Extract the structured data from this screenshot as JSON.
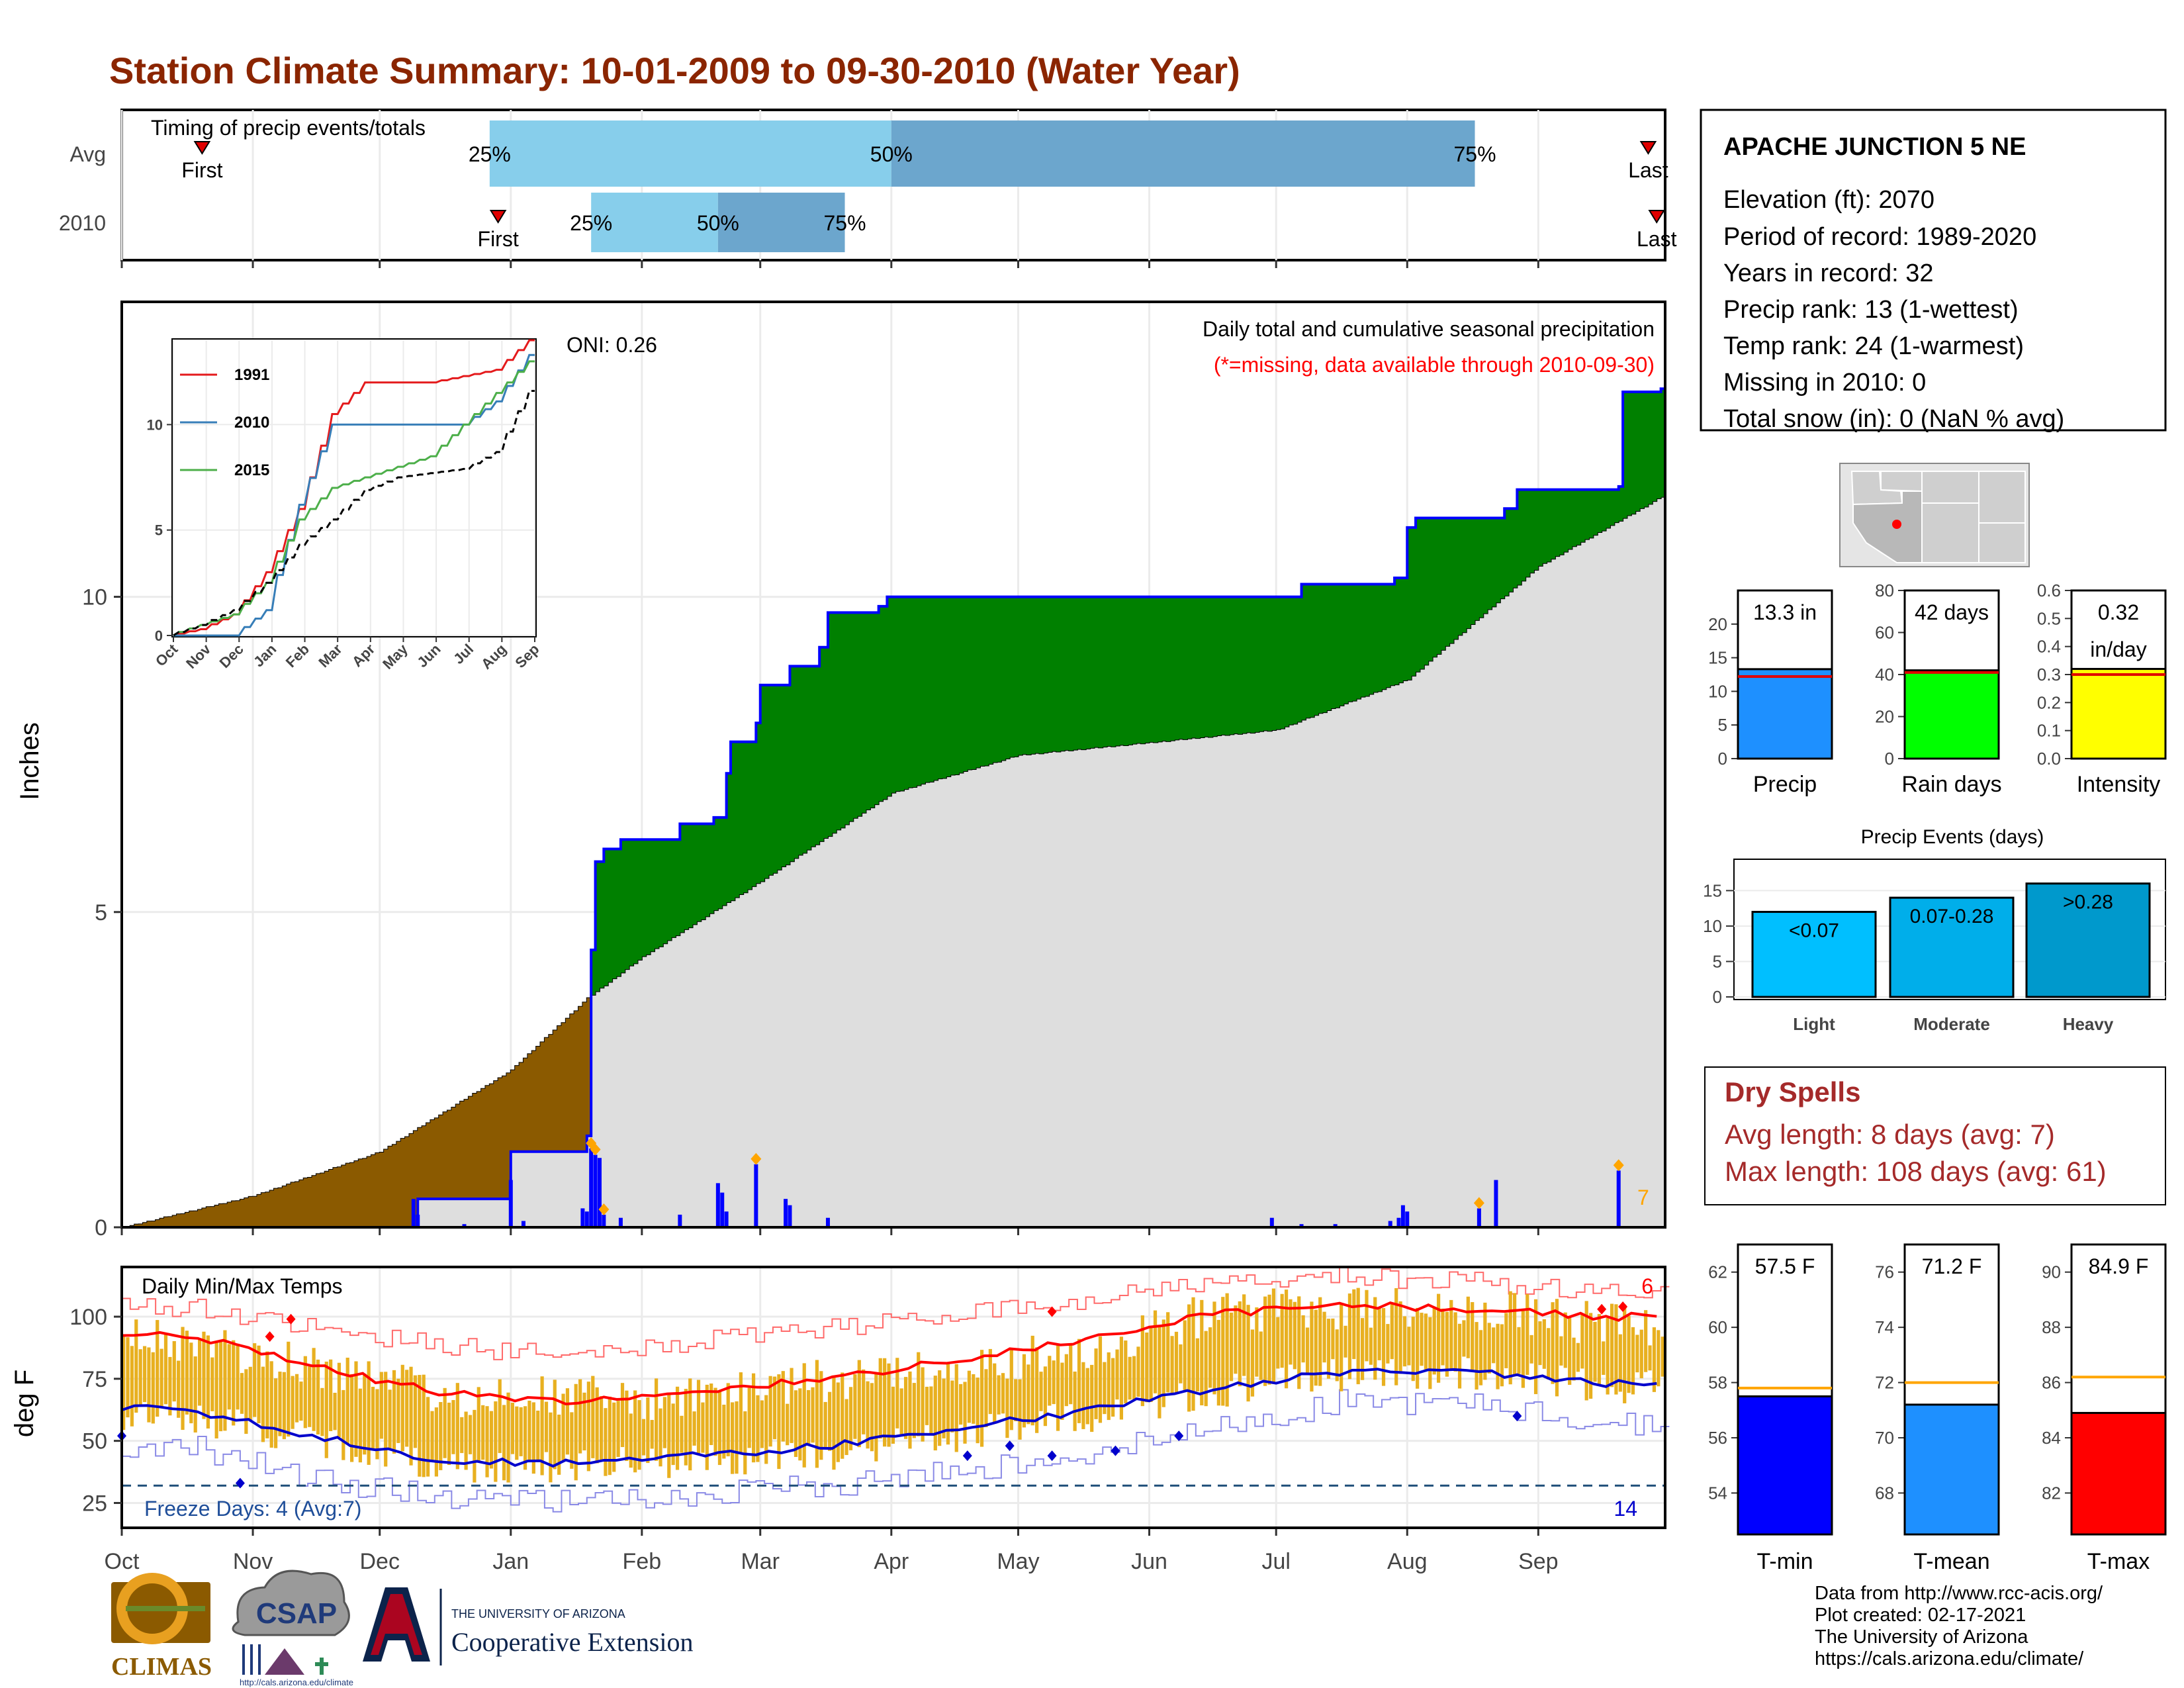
{
  "title": "Station Climate Summary: 10-01-2009 to 09-30-2010 (Water Year)",
  "timing_panel": {
    "title": "Timing of precip events/totals",
    "rows": [
      {
        "label": "Avg",
        "first_label": "First",
        "last_label": "Last",
        "first_date": "2009-10-20",
        "last_date": "2010-09-27",
        "q25": "25%",
        "q50": "50%",
        "q75": "75%",
        "q25_date": "2009-12-27",
        "q50_date": "2010-04-01",
        "q75_date": "2010-08-17"
      },
      {
        "label": "2010",
        "first_label": "First",
        "last_label": "Last",
        "first_date": "2009-12-29",
        "last_date": "2010-09-29",
        "q25": "25%",
        "q50": "50%",
        "q75": "75%",
        "q25_date": "2010-01-20",
        "q50_date": "2010-02-19",
        "q75_date": "2010-03-21"
      }
    ]
  },
  "precip_panel": {
    "ylabel": "Inches",
    "title": "Daily total and cumulative seasonal precipitation",
    "subtitle": "(*=missing, data available through 2010-09-30)",
    "oni": "ONI: 0.26",
    "count_label": "7",
    "colors": {
      "above_avg": "#008000",
      "below_avg": "#8B5A00",
      "avg_fill": "#DEDEDE",
      "bars": "#0000FF",
      "markers": "#FFA500"
    }
  },
  "inset": {
    "legend": [
      "1991",
      "2010",
      "2015"
    ],
    "colors": [
      "#E41A1C",
      "#377EB8",
      "#4DAF4A"
    ],
    "ylabels": [
      "0",
      "5",
      "10"
    ],
    "xlabels": [
      "Oct",
      "Nov",
      "Dec",
      "Jan",
      "Feb",
      "Mar",
      "Apr",
      "May",
      "Jun",
      "Jul",
      "Aug",
      "Sep"
    ]
  },
  "temp_panel": {
    "title": "Daily Min/Max Temps",
    "ylabel": "deg F",
    "yticks": [
      "25",
      "50",
      "75",
      "100"
    ],
    "freeze_label": "Freeze Days: 4 (Avg:7)",
    "high_count": "6",
    "low_count": "14",
    "colors": {
      "bars": "#E8B020",
      "max_line": "#FF0000",
      "min_line": "#0000CC"
    }
  },
  "months": [
    "Oct",
    "Nov",
    "Dec",
    "Jan",
    "Feb",
    "Mar",
    "Apr",
    "May",
    "Jun",
    "Jul",
    "Aug",
    "Sep"
  ],
  "station": {
    "name": "APACHE JUNCTION 5 NE",
    "lines": [
      "Elevation (ft): 2070",
      "Period of record: 1989-2020",
      "Years in record: 32",
      "Precip rank: 13 (1-wettest)",
      "Temp rank: 24 (1-warmest)",
      "Missing in 2010: 0",
      "Total snow (in): 0 (NaN % avg)"
    ]
  },
  "summary_bars": [
    {
      "name": "Precip",
      "value": 13.3,
      "avg": 12.2,
      "label": "13.3 in",
      "color": "#1E90FF",
      "yticks": [
        "0",
        "5",
        "10",
        "15",
        "20"
      ],
      "ymax": 25
    },
    {
      "name": "Rain days",
      "value": 42,
      "avg": 41,
      "label": "42 days",
      "color": "#00FF00",
      "yticks": [
        "0",
        "20",
        "40",
        "60",
        "80"
      ],
      "ymax": 80
    },
    {
      "name": "Intensity",
      "value": 0.32,
      "avg": 0.3,
      "label": "0.32",
      "label2": "in/day",
      "color": "#FFFF00",
      "yticks": [
        "0.0",
        "0.1",
        "0.2",
        "0.3",
        "0.4",
        "0.5",
        "0.6"
      ],
      "ymax": 0.6
    }
  ],
  "precip_events": {
    "title": "Precip Events (days)",
    "yticks": [
      "0",
      "5",
      "10",
      "15"
    ],
    "bars": [
      {
        "name": "Light",
        "range": "<0.07",
        "value": 12,
        "color": "#00BFFF"
      },
      {
        "name": "Moderate",
        "range": "0.07-0.28",
        "value": 14,
        "color": "#00AEEA"
      },
      {
        "name": "Heavy",
        "range": ">0.28",
        "value": 16,
        "color": "#0099CC"
      }
    ]
  },
  "dry_spells": {
    "title": "Dry Spells",
    "avg_length": "Avg length: 8 days (avg: 7)",
    "max_length": "Max length: 108 days (avg: 61)"
  },
  "temp_bars": [
    {
      "name": "T-min",
      "value": 57.5,
      "avg": 57.8,
      "label": "57.5 F",
      "color": "#0000FF",
      "yticks": [
        "54",
        "56",
        "58",
        "60",
        "62"
      ],
      "ymin": 52.5,
      "ymax": 63
    },
    {
      "name": "T-mean",
      "value": 71.2,
      "avg": 72.0,
      "label": "71.2 F",
      "color": "#1E90FF",
      "yticks": [
        "68",
        "70",
        "72",
        "74",
        "76"
      ],
      "ymin": 66.5,
      "ymax": 77
    },
    {
      "name": "T-max",
      "value": 84.9,
      "avg": 86.2,
      "label": "84.9 F",
      "color": "#FF0000",
      "yticks": [
        "82",
        "84",
        "86",
        "88",
        "90"
      ],
      "ymin": 80.5,
      "ymax": 91
    }
  ],
  "footer": {
    "lines": [
      "Data from http://www.rcc-acis.org/",
      "Plot created: 02-17-2021",
      "The University of Arizona",
      "https://cals.arizona.edu/climate/"
    ],
    "climas": "CLIMAS",
    "csap": "CSAP",
    "csap_url": "http://cals.arizona.edu/climate",
    "ua_small": "THE UNIVERSITY OF ARIZONA",
    "ua_big": "Cooperative Extension"
  },
  "chart_data": [
    {
      "type": "area",
      "title": "Daily total and cumulative seasonal precipitation",
      "ylabel": "Inches",
      "ylim": [
        0,
        14.5
      ],
      "x_range": [
        "2009-10-01",
        "2010-09-30"
      ],
      "series": [
        {
          "name": "2010",
          "points": [
            [
              "2009-10-01",
              0
            ],
            [
              "2009-12-08",
              0
            ],
            [
              "2009-12-10",
              0.45
            ],
            [
              "2009-12-31",
              0.45
            ],
            [
              "2010-01-01",
              1.2
            ],
            [
              "2010-01-18",
              1.2
            ],
            [
              "2010-01-19",
              1.45
            ],
            [
              "2010-01-20",
              4.4
            ],
            [
              "2010-01-21",
              5.8
            ],
            [
              "2010-01-23",
              6.0
            ],
            [
              "2010-01-27",
              6.15
            ],
            [
              "2010-02-10",
              6.4
            ],
            [
              "2010-02-18",
              6.5
            ],
            [
              "2010-02-21",
              7.2
            ],
            [
              "2010-02-22",
              7.7
            ],
            [
              "2010-02-28",
              8.0
            ],
            [
              "2010-03-01",
              8.6
            ],
            [
              "2010-03-08",
              8.9
            ],
            [
              "2010-03-15",
              9.2
            ],
            [
              "2010-03-17",
              9.75
            ],
            [
              "2010-03-29",
              9.85
            ],
            [
              "2010-03-31",
              10.0
            ],
            [
              "2010-07-01",
              10.0
            ],
            [
              "2010-07-07",
              10.2
            ],
            [
              "2010-07-29",
              10.3
            ],
            [
              "2010-08-01",
              11.1
            ],
            [
              "2010-08-03",
              11.25
            ],
            [
              "2010-08-24",
              11.4
            ],
            [
              "2010-08-27",
              11.7
            ],
            [
              "2010-09-20",
              11.75
            ],
            [
              "2010-09-21",
              13.25
            ],
            [
              "2010-09-30",
              13.3
            ]
          ]
        },
        {
          "name": "Avg",
          "points": [
            [
              "2009-10-01",
              0
            ],
            [
              "2009-11-01",
              0.5
            ],
            [
              "2009-12-01",
              1.2
            ],
            [
              "2010-01-01",
              2.5
            ],
            [
              "2010-01-20",
              3.7
            ],
            [
              "2010-02-01",
              4.3
            ],
            [
              "2010-03-01",
              5.5
            ],
            [
              "2010-04-01",
              6.9
            ],
            [
              "2010-05-01",
              7.5
            ],
            [
              "2010-06-01",
              7.7
            ],
            [
              "2010-07-01",
              7.9
            ],
            [
              "2010-08-01",
              8.7
            ],
            [
              "2010-09-01",
              10.5
            ],
            [
              "2010-09-30",
              11.6
            ]
          ]
        }
      ],
      "daily_bars": [
        [
          "2009-12-09",
          0.45
        ],
        [
          "2009-12-10",
          0.2
        ],
        [
          "2009-12-21",
          0.05
        ],
        [
          "2010-01-01",
          0.75
        ],
        [
          "2010-01-04",
          0.1
        ],
        [
          "2010-01-18",
          0.3
        ],
        [
          "2010-01-19",
          0.25
        ],
        [
          "2010-01-20",
          1.25
        ],
        [
          "2010-01-21",
          1.15
        ],
        [
          "2010-01-22",
          1.1
        ],
        [
          "2010-01-23",
          0.2
        ],
        [
          "2010-01-27",
          0.15
        ],
        [
          "2010-02-10",
          0.2
        ],
        [
          "2010-02-19",
          0.7
        ],
        [
          "2010-02-20",
          0.55
        ],
        [
          "2010-02-21",
          0.25
        ],
        [
          "2010-02-28",
          1.0
        ],
        [
          "2010-03-07",
          0.45
        ],
        [
          "2010-03-08",
          0.35
        ],
        [
          "2010-03-17",
          0.15
        ],
        [
          "2010-06-30",
          0.15
        ],
        [
          "2010-07-07",
          0.05
        ],
        [
          "2010-07-15",
          0.05
        ],
        [
          "2010-07-28",
          0.1
        ],
        [
          "2010-07-30",
          0.15
        ],
        [
          "2010-07-31",
          0.35
        ],
        [
          "2010-08-01",
          0.25
        ],
        [
          "2010-08-18",
          0.3
        ],
        [
          "2010-08-22",
          0.75
        ],
        [
          "2010-09-20",
          0.9
        ]
      ]
    },
    {
      "type": "line",
      "title": "",
      "legend": [
        "1991",
        "2010",
        "2015"
      ],
      "ylim": [
        0,
        14
      ],
      "series": [
        {
          "name": "1991",
          "values": [
            0,
            0.3,
            1.0,
            3.0,
            6.0,
            10.5,
            12.0,
            12.0,
            12.0,
            12.3,
            12.6,
            14.0
          ]
        },
        {
          "name": "2010",
          "values": [
            0,
            0,
            0,
            1.2,
            6.2,
            10.0,
            10.0,
            10.0,
            10.0,
            10.0,
            11.1,
            13.3
          ]
        },
        {
          "name": "2015",
          "values": [
            0,
            0.5,
            1.0,
            2.5,
            5.5,
            7.0,
            7.5,
            8.0,
            8.5,
            10.0,
            11.5,
            13.0
          ]
        },
        {
          "name": "Avg",
          "values": [
            0,
            0.5,
            1.2,
            2.5,
            4.3,
            5.5,
            6.9,
            7.5,
            7.7,
            7.9,
            8.7,
            11.6
          ]
        }
      ]
    },
    {
      "type": "line",
      "title": "Daily Min/Max Temps",
      "ylabel": "deg F",
      "ylim": [
        15,
        120
      ],
      "categories": [
        "Oct",
        "Nov",
        "Dec",
        "Jan",
        "Feb",
        "Mar",
        "Apr",
        "May",
        "Jun",
        "Jul",
        "Aug",
        "Sep"
      ],
      "series": [
        {
          "name": "Avg max",
          "values": [
            93,
            80,
            69,
            66,
            70,
            75,
            83,
            91,
            101,
            105,
            103,
            100
          ]
        },
        {
          "name": "Avg min",
          "values": [
            63,
            52,
            42,
            41,
            44,
            48,
            55,
            62,
            71,
            78,
            78,
            73
          ]
        },
        {
          "name": "Record high",
          "values": [
            104,
            96,
            88,
            84,
            90,
            95,
            101,
            107,
            114,
            116,
            114,
            110
          ]
        },
        {
          "name": "Record low",
          "values": [
            48,
            35,
            27,
            25,
            28,
            32,
            38,
            45,
            55,
            66,
            65,
            57
          ]
        },
        {
          "name": "2010 max",
          "values": [
            90,
            80,
            68,
            68,
            66,
            75,
            80,
            87,
            102,
            104,
            103,
            97
          ]
        },
        {
          "name": "2010 min",
          "values": [
            60,
            50,
            40,
            40,
            42,
            45,
            52,
            60,
            70,
            77,
            77,
            72
          ]
        }
      ],
      "freeze_line": 32
    },
    {
      "type": "bar",
      "categories": [
        "Precip",
        "Rain days",
        "Intensity"
      ],
      "values": [
        13.3,
        42,
        0.32
      ]
    },
    {
      "type": "bar",
      "title": "Precip Events (days)",
      "categories": [
        "Light",
        "Moderate",
        "Heavy"
      ],
      "values": [
        12,
        14,
        16
      ]
    },
    {
      "type": "bar",
      "categories": [
        "T-min",
        "T-mean",
        "T-max"
      ],
      "values": [
        57.5,
        71.2,
        84.9
      ]
    }
  ]
}
